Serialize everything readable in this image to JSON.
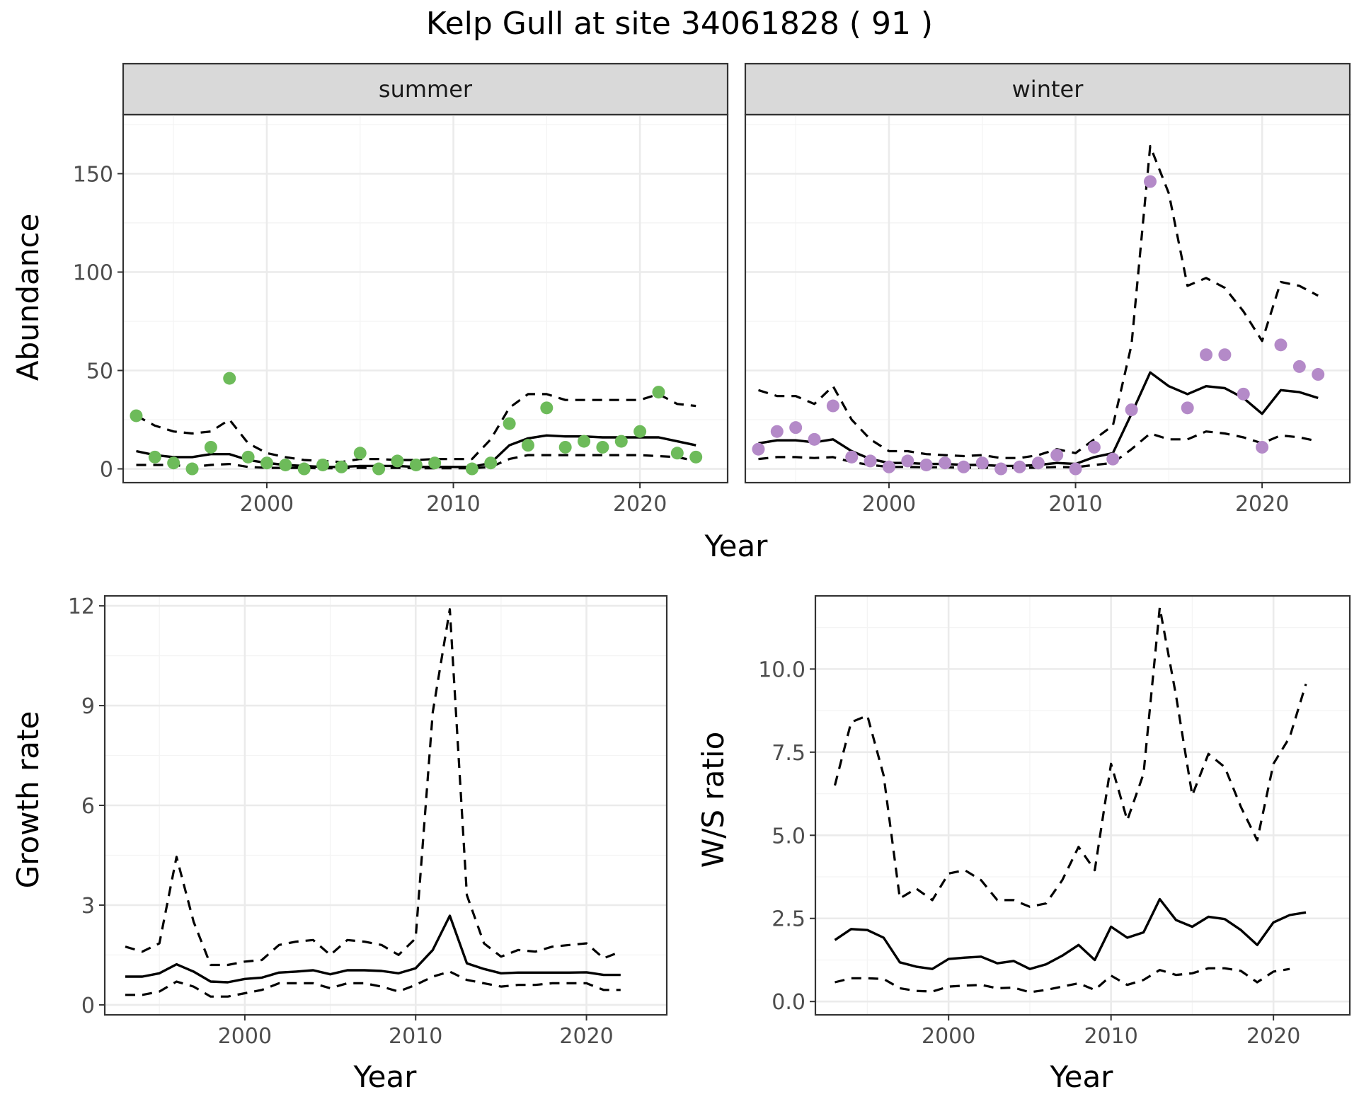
{
  "title": "Kelp Gull at site 34061828 ( 91 )",
  "colors": {
    "summer_points": "#6dbb5a",
    "winter_points": "#b48ac8",
    "lines": "#000000"
  },
  "chart_data": [
    {
      "id": "summer",
      "type": "line",
      "strip": "summer",
      "xlabel": "Year",
      "ylabel": "Abundance",
      "xlim": [
        1992.3,
        2024.7
      ],
      "ylim": [
        -7,
        180
      ],
      "xticks": [
        2000,
        2010,
        2020
      ],
      "yticks": [
        0,
        50,
        100,
        150
      ],
      "xminor": [
        1995,
        2005,
        2015
      ],
      "yminor": [
        25,
        75,
        125,
        175
      ],
      "grid": true,
      "points": {
        "x": [
          1993,
          1994,
          1995,
          1996,
          1997,
          1998,
          1999,
          2000,
          2001,
          2002,
          2003,
          2004,
          2005,
          2006,
          2007,
          2008,
          2009,
          2010,
          2011,
          2012,
          2013,
          2014,
          2015,
          2016,
          2017,
          2018,
          2019,
          2020,
          2021,
          2022,
          2023
        ],
        "y": [
          27,
          6,
          3,
          0,
          11,
          46,
          6,
          3,
          2,
          0,
          2,
          1,
          8,
          0,
          4,
          2,
          3,
          null,
          0,
          3,
          23,
          12,
          31,
          11,
          14,
          11,
          14,
          19,
          39,
          8,
          6
        ]
      },
      "series": [
        {
          "role": "estimate",
          "x": [
            1993,
            1994,
            1995,
            1996,
            1997,
            1998,
            1999,
            2000,
            2001,
            2002,
            2003,
            2004,
            2005,
            2006,
            2007,
            2008,
            2009,
            2010,
            2011,
            2012,
            2013,
            2014,
            2015,
            2016,
            2017,
            2018,
            2019,
            2020,
            2021,
            2022,
            2023
          ],
          "values": [
            9,
            7,
            6,
            6,
            7.5,
            7.5,
            4.5,
            3,
            2,
            1.5,
            1,
            1,
            1.5,
            1.5,
            1.5,
            1,
            1,
            1,
            1,
            3,
            12,
            15.5,
            17,
            16.5,
            16.5,
            16,
            16,
            16,
            16,
            14,
            12
          ]
        },
        {
          "role": "upper",
          "x": [
            1993,
            1994,
            1995,
            1996,
            1997,
            1998,
            1999,
            2000,
            2001,
            2002,
            2003,
            2004,
            2005,
            2006,
            2007,
            2008,
            2009,
            2010,
            2011,
            2012,
            2013,
            2014,
            2015,
            2016,
            2017,
            2018,
            2019,
            2020,
            2021,
            2022,
            2023
          ],
          "values": [
            27,
            22,
            19,
            18,
            19,
            25,
            13,
            8,
            6,
            4.5,
            4,
            3.5,
            5,
            5,
            4.5,
            4.5,
            5,
            5,
            5,
            15,
            31,
            38,
            38,
            35,
            35,
            35,
            35,
            35,
            38,
            33,
            32
          ]
        },
        {
          "role": "lower",
          "x": [
            1993,
            1994,
            1995,
            1996,
            1997,
            1998,
            1999,
            2000,
            2001,
            2002,
            2003,
            2004,
            2005,
            2006,
            2007,
            2008,
            2009,
            2010,
            2011,
            2012,
            2013,
            2014,
            2015,
            2016,
            2017,
            2018,
            2019,
            2020,
            2021,
            2022,
            2023
          ],
          "values": [
            2,
            2,
            2,
            1,
            2,
            2.5,
            1,
            0.5,
            0.5,
            0.5,
            0.3,
            0.3,
            0.5,
            0.5,
            0.5,
            0.3,
            0.3,
            0.3,
            0.3,
            1,
            5,
            7,
            7,
            7,
            7,
            7,
            7,
            7,
            6.5,
            6,
            4
          ]
        }
      ]
    },
    {
      "id": "winter",
      "type": "line",
      "strip": "winter",
      "xlabel": "Year",
      "ylabel": "Abundance",
      "xlim": [
        1992.3,
        2024.7
      ],
      "ylim": [
        -7,
        180
      ],
      "xticks": [
        2000,
        2010,
        2020
      ],
      "yticks": [
        0,
        50,
        100,
        150
      ],
      "xminor": [
        1995,
        2005,
        2015
      ],
      "yminor": [
        25,
        75,
        125,
        175
      ],
      "grid": true,
      "points": {
        "x": [
          1993,
          1994,
          1995,
          1996,
          1997,
          1998,
          1999,
          2000,
          2001,
          2002,
          2003,
          2004,
          2005,
          2006,
          2007,
          2008,
          2009,
          2010,
          2011,
          2012,
          2013,
          2014,
          2015,
          2016,
          2017,
          2018,
          2019,
          2020,
          2021,
          2022,
          2023
        ],
        "y": [
          10,
          19,
          21,
          15,
          32,
          6,
          4,
          1,
          4,
          2,
          3,
          1,
          3,
          0,
          1,
          3,
          7,
          0,
          11,
          5,
          30,
          146,
          null,
          31,
          58,
          58,
          38,
          11,
          63,
          52,
          48
        ]
      },
      "series": [
        {
          "role": "estimate",
          "x": [
            1993,
            1994,
            1995,
            1996,
            1997,
            1998,
            1999,
            2000,
            2001,
            2002,
            2003,
            2004,
            2005,
            2006,
            2007,
            2008,
            2009,
            2010,
            2011,
            2012,
            2013,
            2014,
            2015,
            2016,
            2017,
            2018,
            2019,
            2020,
            2021,
            2022,
            2023
          ],
          "values": [
            13,
            14.5,
            14.5,
            13.5,
            15,
            9,
            5,
            3,
            3,
            2.5,
            2.5,
            2,
            2,
            1.5,
            1.5,
            2,
            3,
            2.5,
            6,
            8,
            28,
            49,
            42,
            38,
            42,
            41,
            36,
            28,
            40,
            39,
            36
          ]
        },
        {
          "role": "upper",
          "x": [
            1993,
            1994,
            1995,
            1996,
            1997,
            1998,
            1999,
            2000,
            2001,
            2002,
            2003,
            2004,
            2005,
            2006,
            2007,
            2008,
            2009,
            2010,
            2011,
            2012,
            2013,
            2014,
            2015,
            2016,
            2017,
            2018,
            2019,
            2020,
            2021,
            2022,
            2023
          ],
          "values": [
            40,
            37,
            37,
            33,
            42,
            25,
            15,
            9,
            9,
            7.5,
            7,
            6.5,
            7,
            5.5,
            5.5,
            7,
            10,
            8,
            15,
            22,
            63,
            164,
            140,
            93,
            97,
            92,
            80,
            65,
            95,
            93,
            88
          ]
        },
        {
          "role": "lower",
          "x": [
            1993,
            1994,
            1995,
            1996,
            1997,
            1998,
            1999,
            2000,
            2001,
            2002,
            2003,
            2004,
            2005,
            2006,
            2007,
            2008,
            2009,
            2010,
            2011,
            2012,
            2013,
            2014,
            2015,
            2016,
            2017,
            2018,
            2019,
            2020,
            2021,
            2022,
            2023
          ],
          "values": [
            5,
            6,
            6,
            5.5,
            6,
            3.5,
            2,
            1,
            1,
            0.8,
            0.8,
            0.6,
            0.6,
            0.5,
            0.5,
            0.6,
            1,
            0.8,
            2,
            3,
            10,
            18,
            15,
            15,
            19,
            18,
            16,
            13,
            17,
            16,
            14
          ]
        }
      ]
    },
    {
      "id": "growth",
      "type": "line",
      "xlabel": "Year",
      "ylabel": "Growth rate",
      "xlim": [
        1991.8,
        2024.7
      ],
      "ylim": [
        -0.3,
        12.3
      ],
      "xticks": [
        2000,
        2010,
        2020
      ],
      "yticks": [
        0,
        3,
        6,
        9,
        12
      ],
      "xminor": [
        1995,
        2005,
        2015
      ],
      "yminor": [
        1.5,
        4.5,
        7.5,
        10.5
      ],
      "grid": true,
      "series": [
        {
          "role": "estimate",
          "x": [
            1993,
            1994,
            1995,
            1996,
            1997,
            1998,
            1999,
            2000,
            2001,
            2002,
            2003,
            2004,
            2005,
            2006,
            2007,
            2008,
            2009,
            2010,
            2011,
            2012,
            2013,
            2014,
            2015,
            2016,
            2017,
            2018,
            2019,
            2020,
            2021,
            2022
          ],
          "values": [
            0.85,
            0.85,
            0.95,
            1.22,
            1.0,
            0.7,
            0.68,
            0.78,
            0.82,
            0.97,
            1.0,
            1.04,
            0.92,
            1.04,
            1.04,
            1.02,
            0.95,
            1.1,
            1.65,
            2.68,
            1.25,
            1.08,
            0.95,
            0.97,
            0.97,
            0.97,
            0.97,
            0.98,
            0.9,
            0.9
          ]
        },
        {
          "role": "upper",
          "x": [
            1993,
            1994,
            1995,
            1996,
            1997,
            1998,
            1999,
            2000,
            2001,
            2002,
            2003,
            2004,
            2005,
            2006,
            2007,
            2008,
            2009,
            2010,
            2011,
            2012,
            2013,
            2014,
            2015,
            2016,
            2017,
            2018,
            2019,
            2020,
            2021,
            2022
          ],
          "values": [
            1.75,
            1.6,
            1.85,
            4.45,
            2.5,
            1.2,
            1.2,
            1.3,
            1.35,
            1.8,
            1.9,
            1.95,
            1.5,
            1.95,
            1.9,
            1.8,
            1.5,
            2.0,
            8.8,
            11.9,
            3.3,
            1.85,
            1.45,
            1.65,
            1.6,
            1.75,
            1.8,
            1.85,
            1.4,
            1.6
          ]
        },
        {
          "role": "lower",
          "x": [
            1993,
            1994,
            1995,
            1996,
            1997,
            1998,
            1999,
            2000,
            2001,
            2002,
            2003,
            2004,
            2005,
            2006,
            2007,
            2008,
            2009,
            2010,
            2011,
            2012,
            2013,
            2014,
            2015,
            2016,
            2017,
            2018,
            2019,
            2020,
            2021,
            2022
          ],
          "values": [
            0.3,
            0.3,
            0.4,
            0.7,
            0.55,
            0.25,
            0.25,
            0.35,
            0.45,
            0.65,
            0.65,
            0.65,
            0.5,
            0.65,
            0.65,
            0.55,
            0.4,
            0.6,
            0.85,
            1.0,
            0.75,
            0.65,
            0.55,
            0.6,
            0.6,
            0.65,
            0.65,
            0.65,
            0.45,
            0.45
          ]
        }
      ]
    },
    {
      "id": "ratio",
      "type": "line",
      "xlabel": "Year",
      "ylabel": "W/S ratio",
      "xlim": [
        1991.8,
        2024.7
      ],
      "ylim": [
        -0.4,
        12.2
      ],
      "xticks": [
        2000,
        2010,
        2020
      ],
      "yticks": [
        0,
        2.5,
        5,
        7.5,
        10
      ],
      "ytick_labels": [
        "0.0",
        "2.5",
        "5.0",
        "7.5",
        "10.0"
      ],
      "xminor": [
        1995,
        2005,
        2015
      ],
      "yminor": [
        1.25,
        3.75,
        6.25,
        8.75,
        11.25
      ],
      "grid": true,
      "series": [
        {
          "role": "estimate",
          "x": [
            1993,
            1994,
            1995,
            1996,
            1997,
            1998,
            1999,
            2000,
            2001,
            2002,
            2003,
            2004,
            2005,
            2006,
            2007,
            2008,
            2009,
            2010,
            2011,
            2012,
            2013,
            2014,
            2015,
            2016,
            2017,
            2018,
            2019,
            2020,
            2021,
            2022
          ],
          "values": [
            1.85,
            2.18,
            2.15,
            1.92,
            1.18,
            1.05,
            0.98,
            1.28,
            1.32,
            1.35,
            1.15,
            1.22,
            0.98,
            1.12,
            1.38,
            1.7,
            1.25,
            2.25,
            1.92,
            2.08,
            3.08,
            2.45,
            2.25,
            2.55,
            2.48,
            2.15,
            1.7,
            2.38,
            2.6,
            2.68
          ]
        },
        {
          "role": "upper",
          "x": [
            1993,
            1994,
            1995,
            1996,
            1997,
            1998,
            1999,
            2000,
            2001,
            2002,
            2003,
            2004,
            2005,
            2006,
            2007,
            2008,
            2009,
            2010,
            2011,
            2012,
            2013,
            2014,
            2015,
            2016,
            2017,
            2018,
            2019,
            2020,
            2021,
            2022
          ],
          "values": [
            6.5,
            8.4,
            8.6,
            6.8,
            3.1,
            3.4,
            3.05,
            3.85,
            3.95,
            3.65,
            3.05,
            3.05,
            2.85,
            2.95,
            3.65,
            4.65,
            3.95,
            7.15,
            5.45,
            6.85,
            11.85,
            9.2,
            6.2,
            7.45,
            7.05,
            5.85,
            4.85,
            7.15,
            7.95,
            9.55
          ]
        },
        {
          "role": "lower",
          "x": [
            1993,
            1994,
            1995,
            1996,
            1997,
            1998,
            1999,
            2000,
            2001,
            2002,
            2003,
            2004,
            2005,
            2006,
            2007,
            2008,
            2009,
            2010,
            2011,
            2012,
            2013,
            2014,
            2015,
            2016,
            2017,
            2018,
            2019,
            2020,
            2021,
            2022
          ],
          "values": [
            0.58,
            0.7,
            0.7,
            0.68,
            0.4,
            0.32,
            0.3,
            0.45,
            0.48,
            0.5,
            0.4,
            0.42,
            0.28,
            0.35,
            0.45,
            0.55,
            0.35,
            0.78,
            0.5,
            0.65,
            0.95,
            0.8,
            0.85,
            1.0,
            1.0,
            0.92,
            0.58,
            0.9,
            0.98,
            null
          ]
        }
      ]
    }
  ]
}
